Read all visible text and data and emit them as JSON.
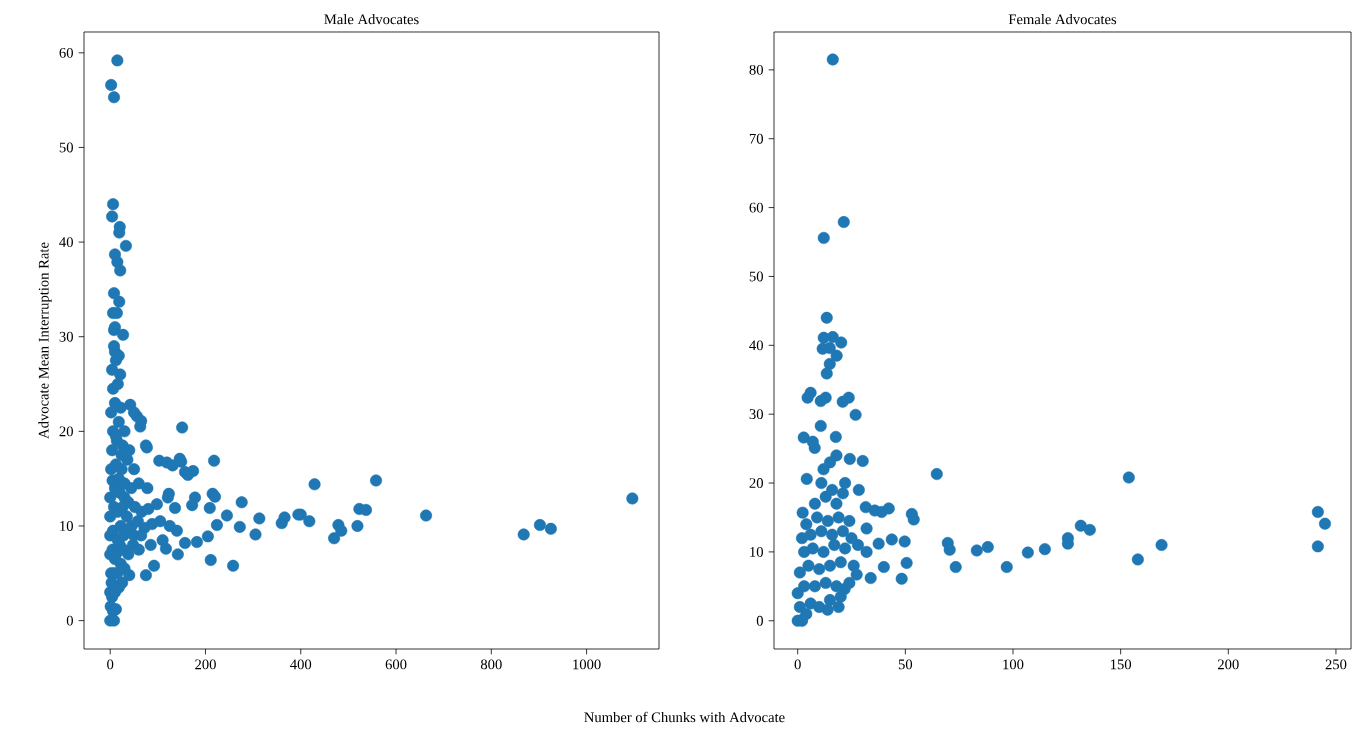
{
  "chart_data": [
    {
      "type": "scatter",
      "title": "Male Advocates",
      "xlabel": "Number of Chunks with Advocate",
      "ylabel": "Advocate Mean Interruption Rate",
      "color": "#1f77b4",
      "marker": "circle",
      "x": [
        2,
        8,
        15,
        6,
        4,
        20,
        19,
        33,
        10,
        15,
        21,
        8,
        19,
        6,
        8,
        27,
        10,
        21,
        42,
        56,
        63,
        151,
        75,
        103,
        119,
        149,
        218,
        174,
        157,
        123,
        215,
        276,
        1096,
        429,
        558,
        400,
        418,
        479,
        485,
        470,
        519,
        523,
        537,
        663,
        868,
        902,
        925,
        121,
        178,
        220,
        172,
        209,
        211,
        258,
        305,
        313,
        360,
        366,
        395,
        245,
        272,
        224,
        205,
        182,
        157,
        142,
        117,
        92,
        75,
        136,
        146,
        77,
        65,
        50,
        163,
        131,
        0,
        8,
        1,
        6,
        12,
        0,
        4,
        10,
        18,
        25,
        2,
        8,
        15,
        22,
        30,
        40,
        0,
        5,
        12,
        20,
        28,
        38,
        48,
        60,
        0,
        6,
        22,
        32,
        45,
        58,
        72,
        88,
        105,
        125,
        0,
        8,
        16,
        26,
        38,
        52,
        66,
        80,
        98,
        0,
        10,
        20,
        30,
        44,
        60,
        78,
        2,
        12,
        24,
        36,
        50,
        4,
        14,
        26,
        40,
        6,
        18,
        30,
        2,
        10,
        22,
        6,
        16,
        4,
        12,
        8,
        18,
        10,
        14,
        3,
        10,
        16,
        28,
        35,
        50,
        65,
        85,
        110,
        140,
        5,
        18,
        30,
        12,
        24
      ],
      "values": [
        56.6,
        55.3,
        59.2,
        44,
        42.7,
        41.6,
        41,
        39.6,
        38.7,
        37.9,
        37,
        34.6,
        33.7,
        32.5,
        30.7,
        30.2,
        28.4,
        26,
        22.8,
        21.6,
        20.5,
        20.4,
        18.5,
        16.9,
        16.7,
        16.8,
        16.9,
        15.8,
        15.7,
        13.4,
        13.4,
        12.5,
        12.9,
        14.4,
        14.8,
        11.2,
        10.5,
        10.1,
        9.5,
        8.7,
        10,
        11.8,
        11.7,
        11.1,
        9.1,
        10.1,
        9.7,
        13,
        13,
        13.1,
        12.2,
        11.9,
        6.4,
        5.8,
        9.1,
        10.8,
        10.3,
        10.9,
        11.2,
        11.1,
        9.9,
        10.1,
        8.9,
        8.3,
        8.2,
        7,
        7.6,
        5.8,
        4.8,
        11.9,
        17.1,
        18.3,
        21.1,
        22,
        15.4,
        16.4,
        0,
        0,
        1.5,
        1,
        1.2,
        3,
        2.5,
        3,
        3.5,
        4,
        5,
        5,
        5,
        6,
        5.5,
        4.8,
        7,
        7.5,
        7,
        8,
        7.5,
        7,
        8,
        7.5,
        9,
        9.5,
        10,
        9.5,
        10,
        10.5,
        9.8,
        10.2,
        10.5,
        10,
        11,
        12,
        11.5,
        12,
        12.5,
        12,
        11.5,
        11.8,
        12.3,
        13,
        14,
        13.5,
        14.5,
        14,
        14.5,
        14,
        16,
        16.5,
        16,
        17,
        16,
        18,
        19,
        18.5,
        18,
        20,
        21,
        20,
        22,
        23,
        22.5,
        24.5,
        25,
        26.5,
        27.5,
        29,
        28,
        31,
        32.5,
        4,
        6.5,
        8.5,
        9,
        11,
        9,
        9,
        8,
        8.5,
        9.5,
        14.8,
        15,
        13,
        19.5,
        17.5
      ],
      "xlim": [
        -55,
        1152
      ],
      "ylim": [
        -3,
        62.2
      ],
      "xticks": [
        0,
        200,
        400,
        600,
        800,
        1000
      ],
      "yticks": [
        0,
        10,
        20,
        30,
        40,
        50,
        60
      ]
    },
    {
      "type": "scatter",
      "title": "Female Advocates",
      "color": "#1f77b4",
      "marker": "circle",
      "x": [
        16.3,
        21.4,
        12.1,
        13.5,
        12.1,
        16.3,
        20.2,
        14.9,
        11.6,
        18.1,
        14.9,
        13.5,
        4.6,
        6,
        10.7,
        13,
        20.9,
        23.7,
        26.9,
        2.8,
        7,
        10.7,
        17.7,
        7.9,
        30.2,
        24.2,
        64.6,
        153.8,
        53,
        53.9,
        49.7,
        50.6,
        48.3,
        69.7,
        70.6,
        73.4,
        83.2,
        88.3,
        97.1,
        106.9,
        114.8,
        125.5,
        125.5,
        131.5,
        135.7,
        158,
        169,
        241.6,
        244.9,
        241.6,
        28.4,
        21,
        31.6,
        35.8,
        42.3,
        39,
        2.3,
        4.2,
        43.7,
        40,
        33.9,
        37.6,
        32,
        32,
        27.4,
        21.8,
        19,
        13.9,
        1.9,
        0,
        2,
        4,
        1,
        6,
        10,
        15,
        20,
        0,
        3,
        8,
        13,
        18,
        24,
        1,
        5,
        10,
        15,
        20,
        26,
        3,
        7,
        12,
        17,
        22,
        28,
        2,
        6,
        11,
        16,
        21,
        25,
        4,
        9,
        14,
        19,
        24,
        8,
        13,
        18,
        11,
        16,
        22,
        12,
        15,
        18
      ],
      "values": [
        81.5,
        57.9,
        55.6,
        44,
        41.1,
        41.2,
        40.4,
        39.6,
        39.5,
        38.5,
        37.3,
        35.9,
        32.4,
        33.1,
        31.9,
        32.4,
        31.8,
        32.4,
        29.9,
        26.6,
        26,
        28.3,
        26.7,
        25.1,
        23.2,
        23.5,
        21.3,
        20.8,
        15.5,
        14.7,
        11.5,
        8.4,
        6.1,
        11.3,
        10.3,
        7.8,
        10.2,
        10.7,
        7.8,
        9.9,
        10.4,
        12,
        11.2,
        13.8,
        13.2,
        8.9,
        11,
        15.8,
        14.1,
        10.8,
        19,
        18.5,
        16.5,
        16,
        16.3,
        15.8,
        15.7,
        20.6,
        11.8,
        7.8,
        6.2,
        11.2,
        13.4,
        10,
        6.7,
        4.6,
        2,
        1.6,
        0.1,
        0,
        0,
        1,
        2,
        2.5,
        2,
        3,
        3.5,
        4,
        5,
        5,
        5.5,
        5,
        5.5,
        7,
        8,
        7.5,
        8,
        8.5,
        8,
        10,
        10.5,
        10,
        11,
        10.5,
        11,
        12,
        12.5,
        13,
        12.5,
        13,
        12,
        14,
        15,
        14.5,
        15,
        14.5,
        17,
        18,
        17,
        20,
        19,
        20,
        22,
        23,
        24
      ],
      "xlim": [
        -11,
        257
      ],
      "ylim": [
        -4.1,
        85.5
      ],
      "xticks": [
        0,
        50,
        100,
        150,
        200,
        250
      ],
      "yticks": [
        0,
        10,
        20,
        30,
        40,
        50,
        60,
        70,
        80
      ]
    }
  ]
}
